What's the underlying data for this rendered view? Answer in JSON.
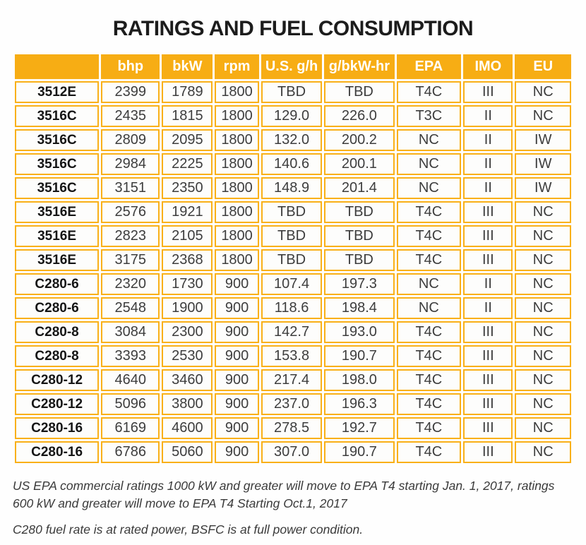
{
  "title": "RATINGS AND FUEL CONSUMPTION",
  "colors": {
    "amber_header": "#F7AD14",
    "amber_border": "#F9B018",
    "header_text": "#FFFFFF",
    "data_text": "#3D3D3D",
    "model_text": "#151515"
  },
  "table": {
    "columns": [
      "",
      "bhp",
      "bkW",
      "rpm",
      "U.S. g/h",
      "g/bkW-hr",
      "EPA",
      "IMO",
      "EU"
    ],
    "rows": [
      [
        "3512E",
        "2399",
        "1789",
        "1800",
        "TBD",
        "TBD",
        "T4C",
        "III",
        "NC"
      ],
      [
        "3516C",
        "2435",
        "1815",
        "1800",
        "129.0",
        "226.0",
        "T3C",
        "II",
        "NC"
      ],
      [
        "3516C",
        "2809",
        "2095",
        "1800",
        "132.0",
        "200.2",
        "NC",
        "II",
        "IW"
      ],
      [
        "3516C",
        "2984",
        "2225",
        "1800",
        "140.6",
        "200.1",
        "NC",
        "II",
        "IW"
      ],
      [
        "3516C",
        "3151",
        "2350",
        "1800",
        "148.9",
        "201.4",
        "NC",
        "II",
        "IW"
      ],
      [
        "3516E",
        "2576",
        "1921",
        "1800",
        "TBD",
        "TBD",
        "T4C",
        "III",
        "NC"
      ],
      [
        "3516E",
        "2823",
        "2105",
        "1800",
        "TBD",
        "TBD",
        "T4C",
        "III",
        "NC"
      ],
      [
        "3516E",
        "3175",
        "2368",
        "1800",
        "TBD",
        "TBD",
        "T4C",
        "III",
        "NC"
      ],
      [
        "C280-6",
        "2320",
        "1730",
        "900",
        "107.4",
        "197.3",
        "NC",
        "II",
        "NC"
      ],
      [
        "C280-6",
        "2548",
        "1900",
        "900",
        "118.6",
        "198.4",
        "NC",
        "II",
        "NC"
      ],
      [
        "C280-8",
        "3084",
        "2300",
        "900",
        "142.7",
        "193.0",
        "T4C",
        "III",
        "NC"
      ],
      [
        "C280-8",
        "3393",
        "2530",
        "900",
        "153.8",
        "190.7",
        "T4C",
        "III",
        "NC"
      ],
      [
        "C280-12",
        "4640",
        "3460",
        "900",
        "217.4",
        "198.0",
        "T4C",
        "III",
        "NC"
      ],
      [
        "C280-12",
        "5096",
        "3800",
        "900",
        "237.0",
        "196.3",
        "T4C",
        "III",
        "NC"
      ],
      [
        "C280-16",
        "6169",
        "4600",
        "900",
        "278.5",
        "192.7",
        "T4C",
        "III",
        "NC"
      ],
      [
        "C280-16",
        "6786",
        "5060",
        "900",
        "307.0",
        "190.7",
        "T4C",
        "III",
        "NC"
      ]
    ]
  },
  "footnotes": [
    "US EPA commercial ratings 1000 kW and greater will move to EPA T4 starting Jan. 1, 2017, ratings 600 kW and greater will move to EPA T4 Starting Oct.1, 2017",
    "C280 fuel rate is at rated power, BSFC is at full power condition."
  ]
}
